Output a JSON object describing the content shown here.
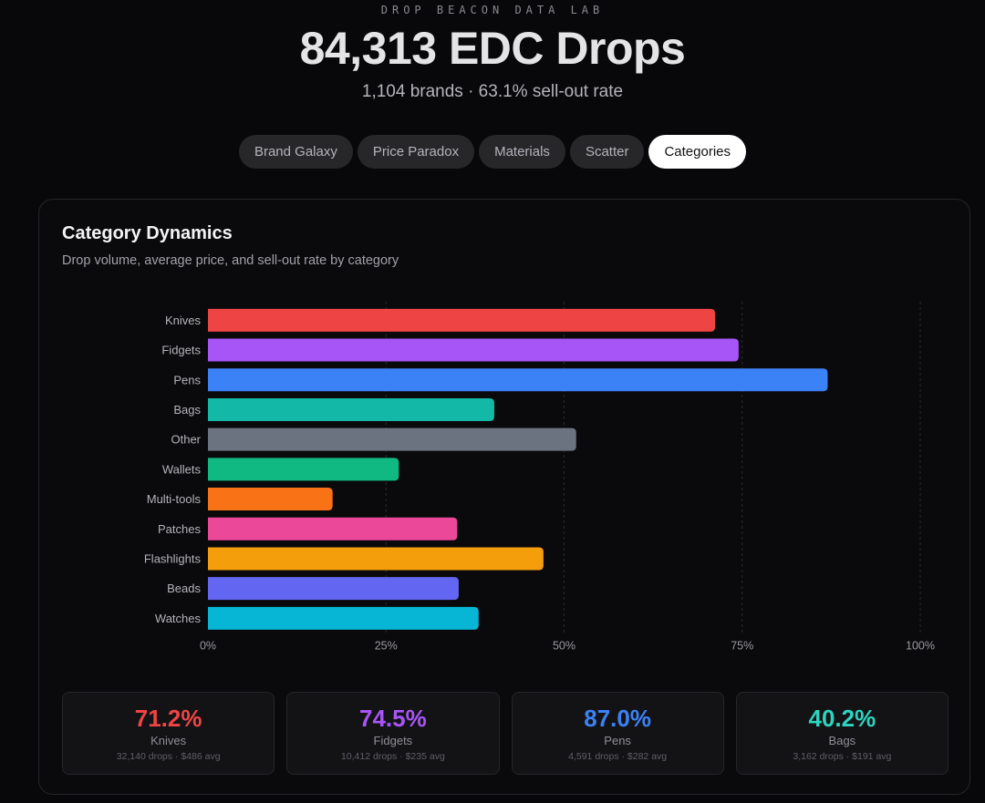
{
  "header": {
    "eyebrow": "DROP BEACON DATA LAB",
    "title": "84,313 EDC Drops",
    "subtitle": "1,104 brands · 63.1% sell-out rate"
  },
  "tabs": [
    {
      "label": "Brand Galaxy",
      "active": false
    },
    {
      "label": "Price Paradox",
      "active": false
    },
    {
      "label": "Materials",
      "active": false
    },
    {
      "label": "Scatter",
      "active": false
    },
    {
      "label": "Categories",
      "active": true
    }
  ],
  "panel": {
    "title": "Category Dynamics",
    "subtitle": "Drop volume, average price, and sell-out rate by category"
  },
  "chart_data": {
    "type": "bar",
    "orientation": "horizontal",
    "title": "Category Dynamics",
    "xlabel": "Sell-out rate",
    "ylabel": "",
    "xlim": [
      0,
      100
    ],
    "x_ticks": [
      "0%",
      "25%",
      "50%",
      "75%",
      "100%"
    ],
    "x_tick_values": [
      0,
      25,
      50,
      75,
      100
    ],
    "grid": "vertical dashed",
    "categories": [
      "Knives",
      "Fidgets",
      "Pens",
      "Bags",
      "Other",
      "Wallets",
      "Multi-tools",
      "Patches",
      "Flashlights",
      "Beads",
      "Watches"
    ],
    "values": [
      71.2,
      74.5,
      87.0,
      40.2,
      51.7,
      26.8,
      17.5,
      35.0,
      47.1,
      35.2,
      38.0
    ],
    "colors": [
      "#ef4444",
      "#a855f7",
      "#3b82f6",
      "#14b8a6",
      "#6b7280",
      "#10b981",
      "#f97316",
      "#ec4899",
      "#f59e0b",
      "#6366f1",
      "#06b6d4"
    ]
  },
  "cards": [
    {
      "value": "71.2%",
      "label": "Knives",
      "meta": "32,140 drops · $486 avg",
      "color": "#ef4444"
    },
    {
      "value": "74.5%",
      "label": "Fidgets",
      "meta": "10,412 drops · $235 avg",
      "color": "#a855f7"
    },
    {
      "value": "87.0%",
      "label": "Pens",
      "meta": "4,591 drops · $282 avg",
      "color": "#3b82f6"
    },
    {
      "value": "40.2%",
      "label": "Bags",
      "meta": "3,162 drops · $191 avg",
      "color": "#2dd4bf"
    }
  ]
}
